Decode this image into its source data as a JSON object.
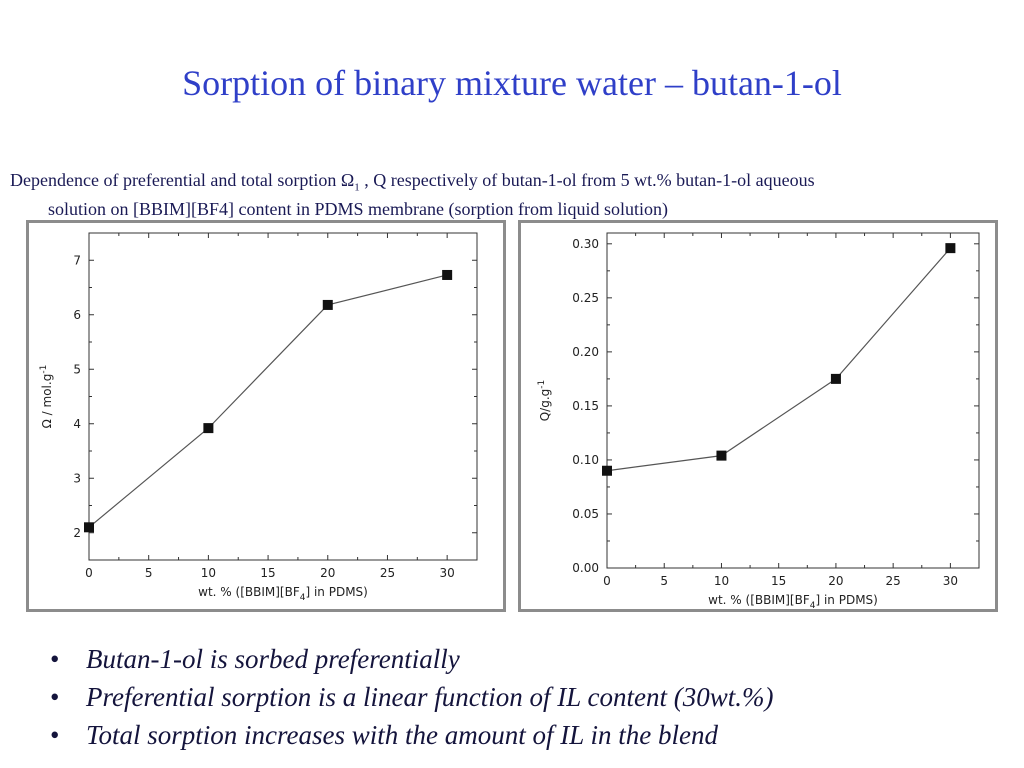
{
  "slide": {
    "title": "Sorption of binary mixture water – butan-1-ol",
    "caption_line1_pre": "Dependence of preferential and total sorption Ω",
    "caption_line1_sub": "1",
    "caption_line1_post": " , Q respectively of butan-1-ol from 5 wt.% butan-1-ol aqueous",
    "caption_line2": "solution on [BBIM][BF4] content in PDMS membrane (sorption from liquid solution)",
    "bullets": [
      "Butan-1-ol is sorbed preferentially",
      "Preferential sorption is a linear function of IL content (30wt.%)",
      "Total sorption increases with the amount of IL in the blend"
    ]
  },
  "chart_data": [
    {
      "type": "line",
      "x": [
        0,
        10,
        20,
        30
      ],
      "y": [
        2.1,
        3.92,
        6.18,
        6.73
      ],
      "xlabel_pre": "wt. % ([BBIM][BF",
      "xlabel_sub": "4",
      "xlabel_post": "] in PDMS)",
      "ylabel_pre": "Ω / mol.g",
      "ylabel_sup": "-1",
      "xlim": [
        0,
        32.5
      ],
      "ylim": [
        1.5,
        7.5
      ],
      "xticks": [
        0,
        5,
        10,
        15,
        20,
        25,
        30
      ],
      "yticks": [
        2,
        3,
        4,
        5,
        6,
        7
      ],
      "xtick_labels": [
        "0",
        "5",
        "10",
        "15",
        "20",
        "25",
        "30"
      ],
      "ytick_labels": [
        "2",
        "3",
        "4",
        "5",
        "6",
        "7"
      ],
      "grid": false
    },
    {
      "type": "line",
      "x": [
        0,
        10,
        20,
        30
      ],
      "y": [
        0.09,
        0.104,
        0.175,
        0.296
      ],
      "xlabel_pre": "wt. % ([BBIM][BF",
      "xlabel_sub": "4",
      "xlabel_post": "] in PDMS)",
      "ylabel_pre": "Q/g.g",
      "ylabel_sup": "-1",
      "xlim": [
        0,
        32.5
      ],
      "ylim": [
        0.0,
        0.31
      ],
      "xticks": [
        0,
        5,
        10,
        15,
        20,
        25,
        30
      ],
      "yticks": [
        0.0,
        0.05,
        0.1,
        0.15,
        0.2,
        0.25,
        0.3
      ],
      "xtick_labels": [
        "0",
        "5",
        "10",
        "15",
        "20",
        "25",
        "30"
      ],
      "ytick_labels": [
        "0.00",
        "0.05",
        "0.10",
        "0.15",
        "0.20",
        "0.25",
        "0.30"
      ],
      "grid": false
    }
  ]
}
